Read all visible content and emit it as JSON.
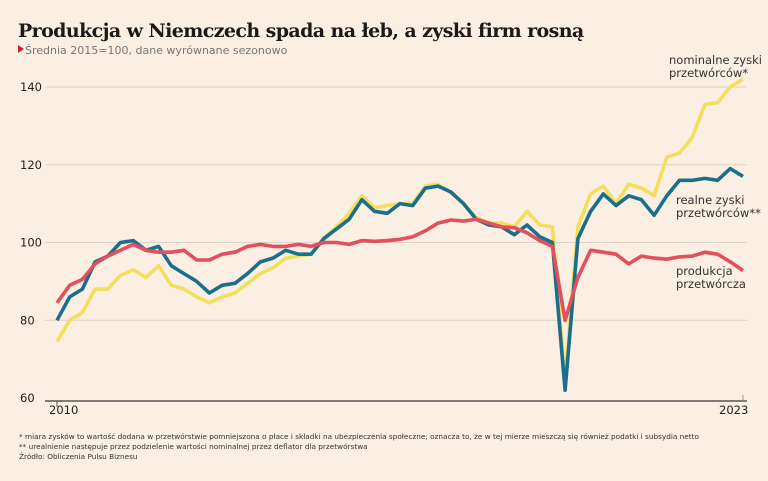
{
  "title": "Produkcja w Niemczech spada na łeb, a zyski firm rosną",
  "subtitle": "Średnia 2015=100, dane wyrównane sezonowo",
  "footnotes": [
    "* miara zysków to wartość dodana w przetwórstwie pomniejszona o płace i składki na ubezpieczenia społeczne; oznacza to, że w tej mierze mieszczą się również podatki i subsydia netto",
    "** urealnienie następuje przez podzielenie wartości nominalnej przez deflator dla przetwórstwa",
    "Źródło: Obliczenia Pulsu Biznesu"
  ],
  "chart_data": {
    "type": "line",
    "title": "Produkcja w Niemczech spada na łeb, a zyski firm rosną",
    "subtitle": "Średnia 2015=100, dane wyrównane sezonowo",
    "xlabel": "",
    "ylabel": "",
    "x_start": 2010,
    "x_step": "quarter",
    "x_tick_labels": [
      "2010",
      "2023"
    ],
    "y_ticks": [
      60,
      80,
      100,
      120,
      140
    ],
    "ylim": [
      60,
      142
    ],
    "grid": true,
    "legend": "direct labels at right",
    "series": [
      {
        "name": "nominalne zyski przetwórców*",
        "label_lines": [
          "nominalne zyski",
          "przetwórców*"
        ],
        "color": "#f3df5c",
        "values": [
          74.5,
          80,
          82,
          88,
          88,
          91.5,
          93,
          91,
          94,
          89,
          88,
          86,
          84.5,
          86,
          87,
          89.5,
          92,
          93.5,
          96,
          96.5,
          97,
          101,
          104,
          107.5,
          112,
          109,
          109.5,
          110,
          110,
          114.5,
          115,
          113,
          110,
          106.5,
          105,
          105,
          104,
          108,
          104.5,
          104,
          65,
          104,
          112.5,
          114.5,
          110,
          115,
          114,
          112,
          122,
          123,
          127,
          135.5,
          136,
          140,
          142
        ]
      },
      {
        "name": "realne zyski przetwórców**",
        "label_lines": [
          "realne zyski",
          "przetwórców**"
        ],
        "color": "#1b6f8c",
        "values": [
          80,
          86,
          88,
          95,
          96.5,
          100,
          100.5,
          98,
          99,
          94,
          92,
          90,
          87,
          89,
          89.5,
          92,
          95,
          96,
          98,
          97,
          97,
          101,
          103.5,
          106,
          111,
          108,
          107.5,
          110,
          109.5,
          114,
          114.5,
          113,
          110,
          106,
          104.5,
          104,
          102,
          104.5,
          101.5,
          100,
          62,
          101,
          108,
          112.5,
          109.5,
          112,
          111,
          107,
          112,
          116,
          116,
          116.5,
          116,
          119,
          117
        ]
      },
      {
        "name": "produkcja przetwórcza",
        "label_lines": [
          "produkcja",
          "przetwórcza"
        ],
        "color": "#e1505c",
        "values": [
          84.5,
          89,
          90.5,
          94.5,
          96.5,
          98,
          99.5,
          98,
          97.5,
          97.5,
          98,
          95.5,
          95.5,
          97,
          97.5,
          99,
          99.5,
          99,
          99,
          99.5,
          99,
          100,
          100,
          99.5,
          100.5,
          100.3,
          100.5,
          100.8,
          101.5,
          103,
          105,
          105.8,
          105.5,
          106,
          105,
          104,
          103.8,
          102.5,
          100.5,
          99,
          80,
          91,
          98,
          97.5,
          97,
          94.5,
          96.5,
          96,
          95.7,
          96.3,
          96.5,
          97.5,
          97,
          95,
          92.8
        ]
      }
    ]
  }
}
